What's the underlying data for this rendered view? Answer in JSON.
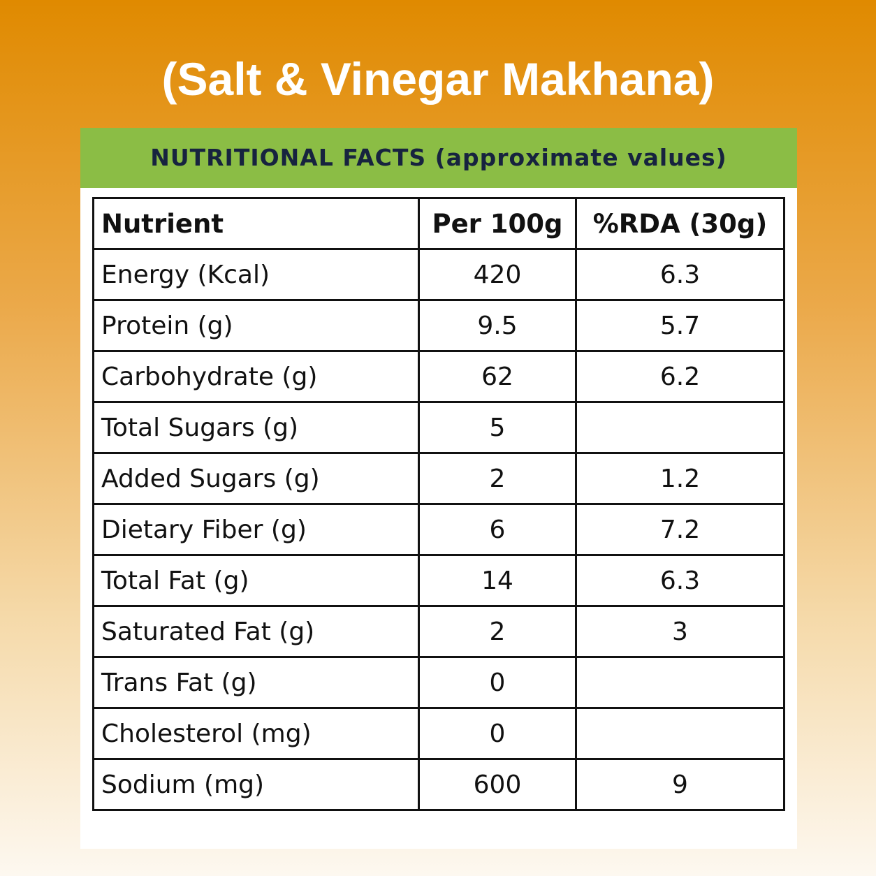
{
  "header": {
    "title": "(Salt & Vinegar Makhana)",
    "subtitle": "NUTRITIONAL FACTS (approximate values)"
  },
  "table": {
    "columns": [
      "Nutrient",
      "Per 100g",
      "%RDA (30g)"
    ],
    "rows": [
      [
        "Energy (Kcal)",
        420,
        6.3
      ],
      [
        "Protein (g)",
        9.5,
        5.7
      ],
      [
        "Carbohydrate (g)",
        62,
        6.2
      ],
      [
        "Total Sugars (g)",
        5,
        null
      ],
      [
        "Added Sugars (g)",
        2,
        1.2
      ],
      [
        "Dietary Fiber (g)",
        6,
        7.2
      ],
      [
        "Total Fat (g)",
        14,
        6.3
      ],
      [
        "Saturated Fat (g)",
        2,
        3
      ],
      [
        "Trans Fat (g)",
        0,
        null
      ],
      [
        "Cholesterol (mg)",
        0,
        null
      ],
      [
        "Sodium (mg)",
        600,
        9
      ]
    ]
  }
}
